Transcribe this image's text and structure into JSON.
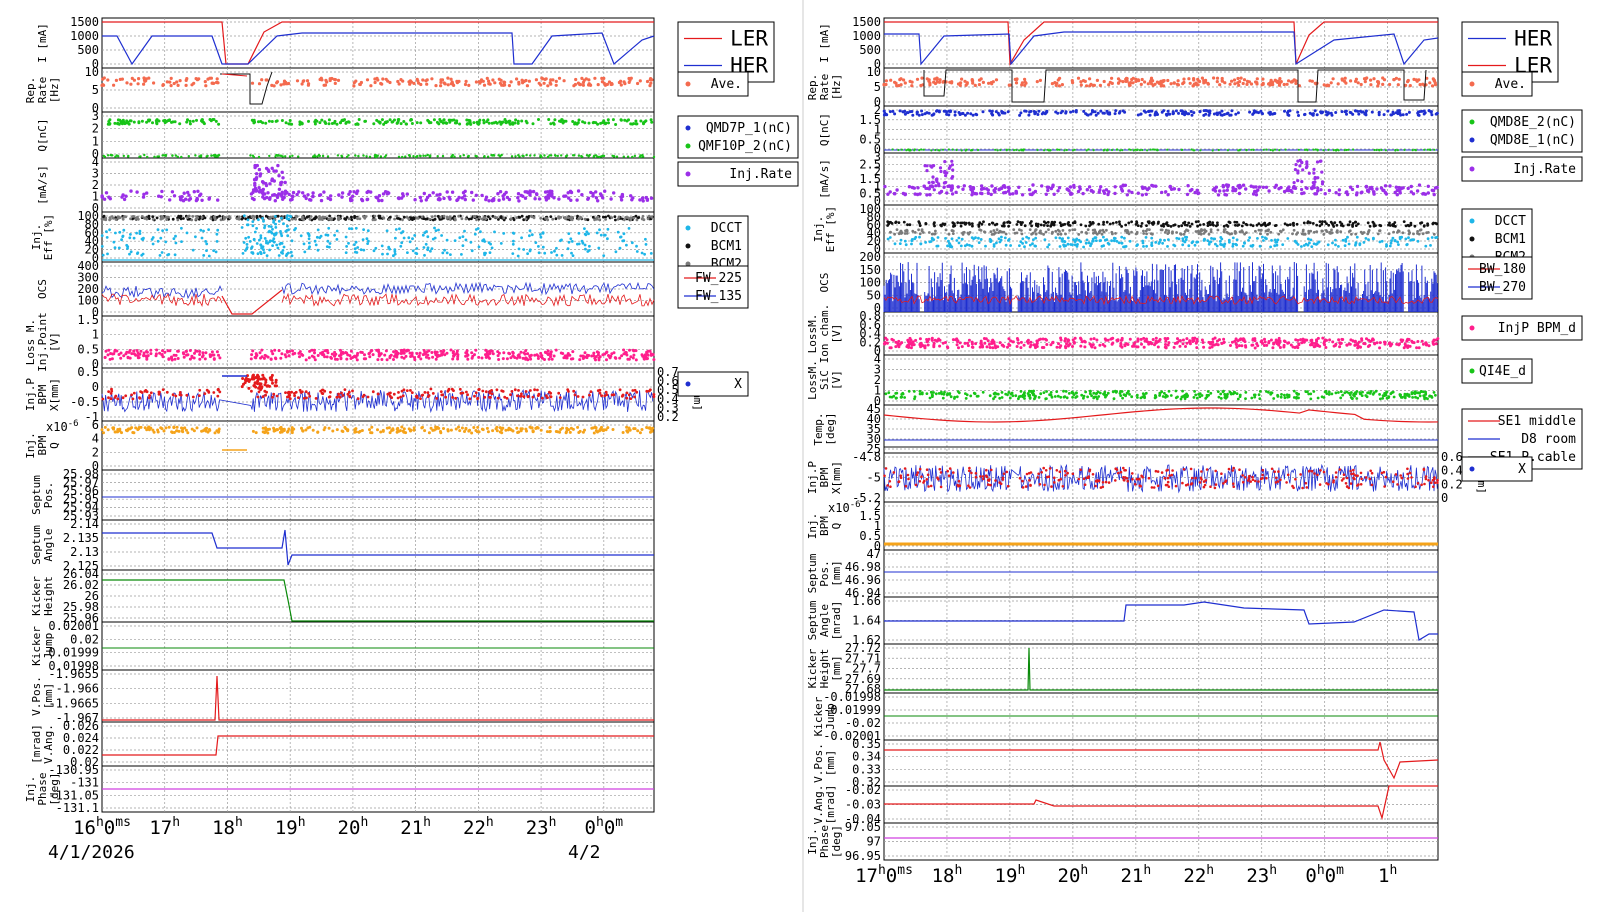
{
  "colors": {
    "red": "#e41a1c",
    "blue": "#1f2fd0",
    "green": "#18c418",
    "purple": "#9b2fe8",
    "cyan": "#1eb6e8",
    "gray": "#7a7a7a",
    "black": "#111111",
    "pink": "#ff1e8c",
    "orange": "#f5a31a",
    "salmon": "#f46a4e",
    "darkgreen": "#0a8a0a",
    "magenta": "#d040e0",
    "grid": "#9a9a9a"
  },
  "left": {
    "date_start": "4/1/2026",
    "date_next": "4/2",
    "xticks": [
      {
        "h": "16",
        "s": "h",
        "m": "0",
        "ms": "m",
        "sx": "s"
      },
      {
        "h": "17",
        "s": "h"
      },
      {
        "h": "18",
        "s": "h"
      },
      {
        "h": "19",
        "s": "h"
      },
      {
        "h": "20",
        "s": "h"
      },
      {
        "h": "21",
        "s": "h"
      },
      {
        "h": "22",
        "s": "h"
      },
      {
        "h": "23",
        "s": "h"
      },
      {
        "h": "0",
        "s": "h",
        "m": "0",
        "ms": "m"
      }
    ],
    "panels": [
      {
        "ylabel": [
          "I [mA]"
        ],
        "ticks": [
          "1500",
          "1000",
          "500",
          "0"
        ],
        "legend": [
          {
            "text": "LER",
            "color": "red"
          },
          {
            "text": "HER",
            "color": "blue"
          }
        ]
      },
      {
        "ylabel": [
          "Rep.",
          "Rate",
          "[Hz]"
        ],
        "ticks": [
          "10",
          "5",
          "0"
        ],
        "legend": [
          {
            "text": "Ave.",
            "color": "salmon"
          }
        ]
      },
      {
        "ylabel": [
          "Q[nC]"
        ],
        "ticks": [
          "3",
          "2",
          "1",
          "0"
        ],
        "legend": [
          {
            "text": "QMD7P_1(nC)",
            "color": "blue"
          },
          {
            "text": "QMF10P_2(nC)",
            "color": "green"
          }
        ]
      },
      {
        "ylabel": [
          "[mA/s]"
        ],
        "ticks": [
          "4",
          "3",
          "2",
          "1",
          "0"
        ],
        "legend": [
          {
            "text": "Inj.Rate",
            "color": "purple"
          }
        ]
      },
      {
        "ylabel": [
          "Inj.",
          "Eff [%]"
        ],
        "ticks": [
          "100",
          "80",
          "60",
          "40",
          "20",
          "0"
        ],
        "legend": [
          {
            "text": "DCCT",
            "color": "cyan"
          },
          {
            "text": "BCM1",
            "color": "black"
          },
          {
            "text": "BCM2",
            "color": "gray"
          }
        ]
      },
      {
        "ylabel": [
          "OCS"
        ],
        "ticks": [
          "400",
          "300",
          "200",
          "100",
          "0"
        ],
        "legend": [
          {
            "text": "FW_225",
            "color": "red"
          },
          {
            "text": "FW_135",
            "color": "blue"
          }
        ]
      },
      {
        "ylabel": [
          "Loss M.",
          "Inj.Point",
          "[V]"
        ],
        "ticks": [
          "1.5",
          "1",
          "0.5",
          "0"
        ],
        "legend": []
      },
      {
        "ylabel": [
          "Inj.P",
          "BPM",
          "X[mm]"
        ],
        "ticks": [
          "0.5",
          "0",
          "-0.5",
          "-1"
        ],
        "right_ticks": [
          "0.7",
          "0.6",
          "0.5",
          "0.4",
          "0.3",
          "0.2"
        ],
        "right_label": "Y[mm]",
        "legend": [
          {
            "text": "X",
            "color": "blue"
          }
        ]
      },
      {
        "ylabel": [
          "Inj.",
          "BPM",
          "Q"
        ],
        "exponent": "x10",
        "exp_sup": "-6",
        "ticks": [
          "6",
          "4",
          "2",
          "0"
        ],
        "legend": []
      },
      {
        "ylabel": [
          "Septum",
          "Pos."
        ],
        "ticks": [
          "25.98",
          "25.97",
          "25.96",
          "25.95",
          "25.94",
          "25.93"
        ],
        "legend": []
      },
      {
        "ylabel": [
          "Septum",
          "Angle"
        ],
        "ticks": [
          "2.14",
          "2.135",
          "2.13",
          "2.125"
        ],
        "legend": []
      },
      {
        "ylabel": [
          "Kicker",
          "Height"
        ],
        "ticks": [
          "26.04",
          "26.02",
          "26",
          "25.98",
          "25.96"
        ],
        "legend": []
      },
      {
        "ylabel": [
          "Kicker",
          "Jump"
        ],
        "ticks": [
          "0.02001",
          "0.02",
          "0.01999",
          "0.01998"
        ],
        "legend": []
      },
      {
        "ylabel": [
          "V.Pos.",
          "[mm]"
        ],
        "ticks": [
          "-1.9655",
          "-1.966",
          "-1.9665",
          "-1.967"
        ],
        "legend": []
      },
      {
        "ylabel": [
          "[mrad]",
          "V.Ang."
        ],
        "ticks": [
          "0.026",
          "0.024",
          "0.022",
          "0.02"
        ],
        "legend": []
      },
      {
        "ylabel": [
          "Inj.",
          "Phase",
          "[deg]"
        ],
        "ticks": [
          "-130.95",
          "-131",
          "-131.05",
          "-131.1"
        ],
        "legend": []
      }
    ]
  },
  "right": {
    "xticks": [
      {
        "h": "17",
        "s": "h",
        "m": "0",
        "ms": "m",
        "sx": "s"
      },
      {
        "h": "18",
        "s": "h"
      },
      {
        "h": "19",
        "s": "h"
      },
      {
        "h": "20",
        "s": "h"
      },
      {
        "h": "21",
        "s": "h"
      },
      {
        "h": "22",
        "s": "h"
      },
      {
        "h": "23",
        "s": "h"
      },
      {
        "h": "0",
        "s": "h",
        "m": "0",
        "ms": "m"
      },
      {
        "h": "1",
        "s": "h"
      }
    ],
    "panels": [
      {
        "ylabel": [
          "I [mA]"
        ],
        "ticks": [
          "1500",
          "1000",
          "500",
          "0"
        ],
        "legend": [
          {
            "text": "HER",
            "color": "blue"
          },
          {
            "text": "LER",
            "color": "red"
          }
        ]
      },
      {
        "ylabel": [
          "Rep.",
          "Rate",
          "[Hz]"
        ],
        "ticks": [
          "10",
          "5",
          "0"
        ],
        "legend": [
          {
            "text": "Ave.",
            "color": "salmon"
          }
        ]
      },
      {
        "ylabel": [
          "Q[nC]"
        ],
        "ticks": [
          "2",
          "1.5",
          "1",
          "0.5",
          "0"
        ],
        "legend": [
          {
            "text": "QMD8E_2(nC)",
            "color": "green"
          },
          {
            "text": "QMD8E_1(nC)",
            "color": "blue"
          }
        ]
      },
      {
        "ylabel": [
          "[mA/s]"
        ],
        "ticks": [
          "3",
          "2.5",
          "2",
          "1.5",
          "1",
          "0.5",
          "0"
        ],
        "legend": [
          {
            "text": "Inj.Rate",
            "color": "purple"
          }
        ]
      },
      {
        "ylabel": [
          "Inj.",
          "Eff [%]"
        ],
        "ticks": [
          "100",
          "80",
          "60",
          "40",
          "20",
          "0"
        ],
        "legend": [
          {
            "text": "DCCT",
            "color": "cyan"
          },
          {
            "text": "BCM1",
            "color": "black"
          },
          {
            "text": "BCM2",
            "color": "gray"
          }
        ]
      },
      {
        "ylabel": [
          "OCS"
        ],
        "ticks": [
          "200",
          "150",
          "100",
          "50",
          "0"
        ],
        "legend": [
          {
            "text": "BW_180",
            "color": "red"
          },
          {
            "text": "BW_270",
            "color": "blue"
          }
        ]
      },
      {
        "ylabel": [
          "LossM.",
          "Ion cham.",
          "[V]"
        ],
        "ticks": [
          "0.8",
          "0.6",
          "0.4",
          "0.2",
          "0"
        ],
        "legend": [
          {
            "text": "InjP BPM_d",
            "color": "pink"
          }
        ]
      },
      {
        "ylabel": [
          "LossM.",
          "SiC",
          "[V]"
        ],
        "ticks": [
          "4",
          "3",
          "2",
          "1",
          "0"
        ],
        "legend": [
          {
            "text": "QI4E_d",
            "color": "green"
          }
        ]
      },
      {
        "ylabel": [
          "Temp.",
          "[deg]"
        ],
        "ticks": [
          "45",
          "40",
          "35",
          "30",
          "25"
        ],
        "legend": [
          {
            "text": "SE1 middle",
            "color": "red"
          },
          {
            "text": "D8 room",
            "color": "blue"
          },
          {
            "text": "SE1 P.cable",
            "color": "black"
          }
        ]
      },
      {
        "ylabel": [
          "Inj.P",
          "BPM",
          "X[mm]"
        ],
        "ticks": [
          "-4.8",
          "-5",
          "-5.2"
        ],
        "right_ticks": [
          "0.6",
          "0.4",
          "0.2",
          "0"
        ],
        "right_label": "Y[mm]",
        "legend": [
          {
            "text": "X",
            "color": "blue"
          }
        ]
      },
      {
        "ylabel": [
          "Inj.",
          "BPM",
          "Q"
        ],
        "exponent": "x10",
        "exp_sup": "-6",
        "ticks": [
          "2",
          "1.5",
          "1",
          "0.5",
          "0"
        ],
        "legend": []
      },
      {
        "ylabel": [
          "Septum",
          "Pos.",
          "[mm]"
        ],
        "ticks": [
          "47",
          "46.98",
          "46.96",
          "46.94"
        ],
        "legend": []
      },
      {
        "ylabel": [
          "Septum",
          "Angle",
          "[mrad]"
        ],
        "ticks": [
          "1.66",
          "1.64",
          "1.62"
        ],
        "legend": []
      },
      {
        "ylabel": [
          "Kicker",
          "Height",
          "[mm]"
        ],
        "ticks": [
          "27.72",
          "27.71",
          "27.7",
          "27.69",
          "27.68"
        ],
        "legend": []
      },
      {
        "ylabel": [
          "Kicker",
          "Jump"
        ],
        "ticks": [
          "-0.01998",
          "-0.01999",
          "-0.02",
          "-0.02001"
        ],
        "legend": []
      },
      {
        "ylabel": [
          "V.Pos.",
          "[mm]"
        ],
        "ticks": [
          "0.35",
          "0.34",
          "0.33",
          "0.32"
        ],
        "legend": []
      },
      {
        "ylabel": [
          "V.Ang.",
          "[mrad]"
        ],
        "ticks": [
          "-0.02",
          "-0.03",
          "-0.04"
        ],
        "legend": []
      },
      {
        "ylabel": [
          "Inj.",
          "Phase",
          "[deg]"
        ],
        "ticks": [
          "97.05",
          "97",
          "96.95"
        ],
        "legend": []
      }
    ]
  },
  "chart_data": [
    {
      "type": "line",
      "x": [
        "16:00",
        "17:00",
        "18:00",
        "19:00",
        "20:00",
        "21:00",
        "22:00",
        "23:00",
        "00:00"
      ],
      "series": [
        {
          "name": "LER",
          "values": [
            1500,
            1500,
            0,
            1500,
            1500,
            1500,
            1500,
            1500,
            1500
          ]
        },
        {
          "name": "HER",
          "values": [
            1100,
            1100,
            0,
            1150,
            1150,
            1150,
            1150,
            1100,
            1100
          ]
        }
      ],
      "ylabel": "I [mA]",
      "ylim": [
        0,
        1600
      ]
    },
    {
      "type": "scatter",
      "series": [
        {
          "name": "Ave.",
          "values": [
            8,
            8,
            2,
            10,
            9,
            9,
            9,
            9,
            8
          ]
        }
      ],
      "ylabel": "Rep. Rate [Hz]",
      "ylim": [
        0,
        12
      ]
    },
    {
      "type": "scatter",
      "series": [
        {
          "name": "QMD7P_1(nC)",
          "values": [
            2.8,
            2.8,
            2.8,
            2.8,
            2.8
          ]
        },
        {
          "name": "QMF10P_2(nC)",
          "values": [
            0,
            0,
            0,
            0,
            0
          ]
        }
      ],
      "ylabel": "Q[nC]",
      "ylim": [
        0,
        3
      ]
    },
    {
      "type": "line",
      "series": [
        {
          "name": "FW_225",
          "values": [
            110,
            120,
            0,
            120,
            120,
            120,
            125,
            125,
            125
          ]
        },
        {
          "name": "FW_135",
          "values": [
            180,
            185,
            0,
            200,
            200,
            200,
            200,
            200,
            200
          ]
        }
      ],
      "ylabel": "OCS",
      "ylim": [
        0,
        400
      ]
    },
    {
      "type": "line",
      "series": [
        {
          "name": "SE1 middle",
          "values": [
            42,
            36,
            42,
            35,
            40,
            43,
            43,
            38,
            43
          ]
        },
        {
          "name": "D8 room",
          "values": [
            28,
            28,
            28,
            28,
            28,
            28,
            28,
            28,
            28
          ]
        },
        {
          "name": "SE1 P.cable",
          "values": [
            26,
            26,
            26,
            26,
            26,
            26,
            26,
            26,
            26
          ]
        }
      ],
      "ylabel": "Temp. [deg]",
      "ylim": [
        25,
        45
      ]
    }
  ]
}
